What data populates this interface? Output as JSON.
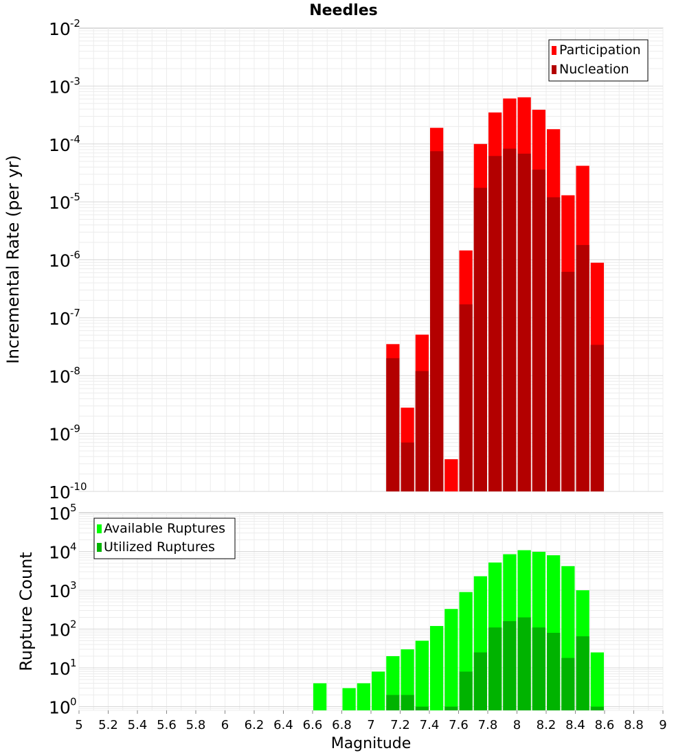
{
  "chart_data": [
    {
      "type": "bar",
      "title": "Needles",
      "xlabel": "",
      "ylabel": "Incremental Rate (per yr)",
      "yscale": "log",
      "ylim": [
        1e-10,
        0.01
      ],
      "xlim": [
        5,
        9
      ],
      "bin_width": 0.1,
      "y_tick_labels": [
        {
          "base": "10",
          "exp": "-2"
        },
        {
          "base": "10",
          "exp": "-3"
        },
        {
          "base": "10",
          "exp": "-4"
        },
        {
          "base": "10",
          "exp": "-5"
        },
        {
          "base": "10",
          "exp": "-6"
        },
        {
          "base": "10",
          "exp": "-7"
        },
        {
          "base": "10",
          "exp": "-8"
        },
        {
          "base": "10",
          "exp": "-9"
        },
        {
          "base": "10",
          "exp": "-10"
        }
      ],
      "legend": {
        "position": "top-right"
      },
      "series": [
        {
          "name": "Participation",
          "color": "#ff0000",
          "x": [
            7.15,
            7.25,
            7.35,
            7.45,
            7.55,
            7.65,
            7.75,
            7.85,
            7.95,
            8.05,
            8.15,
            8.25,
            8.35,
            8.45,
            8.55
          ],
          "values": [
            3.5e-08,
            2.8e-09,
            5.1e-08,
            0.00019,
            3.6e-10,
            1.45e-06,
            0.0001,
            0.00035,
            0.00061,
            0.00064,
            0.00039,
            0.00018,
            1.3e-05,
            4.2e-05,
            8.9e-07
          ]
        },
        {
          "name": "Nucleation",
          "color": "#b30000",
          "x": [
            7.15,
            7.25,
            7.35,
            7.45,
            7.65,
            7.75,
            7.85,
            7.95,
            8.05,
            8.15,
            8.25,
            8.35,
            8.45,
            8.55
          ],
          "values": [
            2e-08,
            7e-10,
            1.2e-08,
            7.5e-05,
            1.7e-07,
            1.75e-05,
            6.2e-05,
            8.3e-05,
            6.8e-05,
            3.6e-05,
            1.2e-05,
            6.2e-07,
            1.8e-06,
            3.4e-08
          ]
        }
      ]
    },
    {
      "type": "bar",
      "title": "",
      "xlabel": "Magnitude",
      "ylabel": "Rupture Count",
      "yscale": "log",
      "ylim": [
        0.8,
        100000.0
      ],
      "xlim": [
        5,
        9
      ],
      "bin_width": 0.1,
      "y_tick_labels": [
        {
          "base": "10",
          "exp": "5"
        },
        {
          "base": "10",
          "exp": "4"
        },
        {
          "base": "10",
          "exp": "3"
        },
        {
          "base": "10",
          "exp": "2"
        },
        {
          "base": "10",
          "exp": "1"
        },
        {
          "base": "10",
          "exp": "0"
        }
      ],
      "x_ticks": [
        "5",
        "5.2",
        "5.4",
        "5.6",
        "5.8",
        "6",
        "6.2",
        "6.4",
        "6.6",
        "6.8",
        "7",
        "7.2",
        "7.4",
        "7.6",
        "7.8",
        "8",
        "8.2",
        "8.4",
        "8.6",
        "8.8",
        "9"
      ],
      "legend": {
        "position": "top-left"
      },
      "series": [
        {
          "name": "Available Ruptures",
          "color": "#00ff00",
          "x": [
            6.65,
            6.85,
            6.95,
            7.05,
            7.15,
            7.25,
            7.35,
            7.45,
            7.55,
            7.65,
            7.75,
            7.85,
            7.95,
            8.05,
            8.15,
            8.25,
            8.35,
            8.45,
            8.55
          ],
          "values": [
            4,
            3,
            4,
            8,
            20,
            30,
            50,
            120,
            330,
            900,
            2300,
            5200,
            8500,
            10800,
            9800,
            8000,
            4200,
            1000,
            25
          ]
        },
        {
          "name": "Utilized Ruptures",
          "color": "#00b300",
          "x": [
            7.15,
            7.25,
            7.35,
            7.55,
            7.65,
            7.75,
            7.85,
            7.95,
            8.05,
            8.15,
            8.25,
            8.35,
            8.45,
            8.55
          ],
          "values": [
            2,
            2,
            1,
            1,
            8,
            25,
            110,
            160,
            200,
            110,
            80,
            18,
            65,
            1
          ]
        }
      ]
    }
  ]
}
